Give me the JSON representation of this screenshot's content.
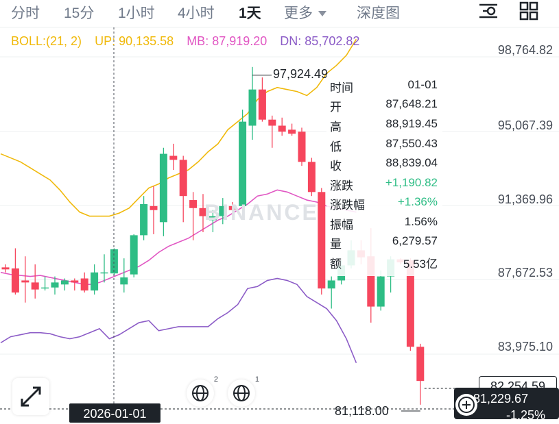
{
  "tabs": [
    {
      "label": "分时"
    },
    {
      "label": "15分"
    },
    {
      "label": "1小时"
    },
    {
      "label": "4小时"
    },
    {
      "label": "1天"
    },
    {
      "label": "更多"
    },
    {
      "label": "深度图"
    }
  ],
  "active_tab": "1天",
  "icons": {
    "settings": "settings-sliders-icon",
    "grid": "grid-layout-icon",
    "expand": "expand-diagonal-icon",
    "globe": "globe-icon",
    "add": "add-circle-icon"
  },
  "indicator": {
    "name": "BOLL:(21, 2)",
    "up": "UP: 90,135.58",
    "mb": "MB: 87,919.20",
    "dn": "DN: 85,702.82"
  },
  "colors": {
    "up": "#2ebd85",
    "down": "#f6465d",
    "boll_up": "#f0b90b",
    "boll_mb": "#e157c3",
    "boll_dn": "#8c5cc7"
  },
  "y_axis": [
    "98,764.82",
    "95,067.39",
    "91,369.96",
    "87,672.53",
    "83,975.10"
  ],
  "tooltip": [
    {
      "k": "时间",
      "v": "01-01"
    },
    {
      "k": "开",
      "v": "87,648.21"
    },
    {
      "k": "高",
      "v": "88,919.45"
    },
    {
      "k": "低",
      "v": "87,550.43"
    },
    {
      "k": "收",
      "v": "88,839.04"
    },
    {
      "k": "涨跌",
      "v": "+1,190.82",
      "up": true
    },
    {
      "k": "涨跌幅",
      "v": "+1.36%",
      "up": true
    },
    {
      "k": "振幅",
      "v": "1.56%"
    },
    {
      "k": "量",
      "v": "6,279.57"
    },
    {
      "k": "额",
      "v": "5.53亿"
    }
  ],
  "crosshair_date": "2026-01-01",
  "peak_label": "97,924.49",
  "low_label": "81,118.00",
  "price_box": "82,254.59",
  "last_price": "81,229.67",
  "last_change": "-1.25%",
  "watermark": "BINANCE",
  "badges": {
    "first": "2",
    "second": "1"
  },
  "chart_data": {
    "type": "candlestick",
    "y_axis_ticks": [
      98764.82,
      95067.39,
      91369.96,
      87672.53,
      83975.1
    ],
    "candles": [
      {
        "o": 87950,
        "h": 88100,
        "l": 87700,
        "c": 87850
      },
      {
        "o": 87900,
        "h": 88900,
        "l": 86600,
        "c": 86700
      },
      {
        "o": 87300,
        "h": 88500,
        "l": 86200,
        "c": 87200
      },
      {
        "o": 87200,
        "h": 88100,
        "l": 86400,
        "c": 86850
      },
      {
        "o": 86900,
        "h": 87500,
        "l": 86800,
        "c": 86950
      },
      {
        "o": 86950,
        "h": 87500,
        "l": 86600,
        "c": 87200
      },
      {
        "o": 87100,
        "h": 87400,
        "l": 86800,
        "c": 87300
      },
      {
        "o": 87300,
        "h": 87400,
        "l": 86800,
        "c": 87200
      },
      {
        "o": 87400,
        "h": 87700,
        "l": 86700,
        "c": 86800
      },
      {
        "o": 86800,
        "h": 88100,
        "l": 86600,
        "c": 87700
      },
      {
        "o": 87650,
        "h": 88600,
        "l": 87200,
        "c": 87700
      },
      {
        "o": 87650,
        "h": 88900,
        "l": 87550,
        "c": 88850
      },
      {
        "o": 87100,
        "h": 88400,
        "l": 86700,
        "c": 87450
      },
      {
        "o": 87600,
        "h": 89600,
        "l": 87450,
        "c": 89550
      },
      {
        "o": 89550,
        "h": 91500,
        "l": 89300,
        "c": 91100
      },
      {
        "o": 91000,
        "h": 92000,
        "l": 89600,
        "c": 90800
      },
      {
        "o": 90200,
        "h": 93900,
        "l": 89500,
        "c": 93600
      },
      {
        "o": 93500,
        "h": 94100,
        "l": 92800,
        "c": 93300
      },
      {
        "o": 93300,
        "h": 93500,
        "l": 90200,
        "c": 91500
      },
      {
        "o": 91300,
        "h": 91700,
        "l": 89300,
        "c": 90900
      },
      {
        "o": 90900,
        "h": 91600,
        "l": 89700,
        "c": 90500
      },
      {
        "o": 90300,
        "h": 90800,
        "l": 89700,
        "c": 90500
      },
      {
        "o": 90500,
        "h": 91400,
        "l": 90100,
        "c": 91000
      },
      {
        "o": 91000,
        "h": 91200,
        "l": 90400,
        "c": 90800
      },
      {
        "o": 91000,
        "h": 95800,
        "l": 90900,
        "c": 95200
      },
      {
        "o": 95000,
        "h": 97920,
        "l": 94300,
        "c": 96800
      },
      {
        "o": 96800,
        "h": 97400,
        "l": 95200,
        "c": 95300
      },
      {
        "o": 95300,
        "h": 95500,
        "l": 93900,
        "c": 95000
      },
      {
        "o": 95000,
        "h": 95400,
        "l": 94500,
        "c": 94700
      },
      {
        "o": 94800,
        "h": 95100,
        "l": 94500,
        "c": 94600
      },
      {
        "o": 94700,
        "h": 94900,
        "l": 93000,
        "c": 93200
      },
      {
        "o": 93200,
        "h": 93400,
        "l": 91500,
        "c": 91700
      },
      {
        "o": 91700,
        "h": 91900,
        "l": 86600,
        "c": 86900
      },
      {
        "o": 86900,
        "h": 87500,
        "l": 85900,
        "c": 87300
      },
      {
        "o": 87300,
        "h": 88300,
        "l": 87100,
        "c": 88050
      },
      {
        "o": 88050,
        "h": 89300,
        "l": 87900,
        "c": 88800
      },
      {
        "o": 88800,
        "h": 89300,
        "l": 88100,
        "c": 88450
      },
      {
        "o": 88500,
        "h": 89900,
        "l": 85200,
        "c": 86000
      },
      {
        "o": 86000,
        "h": 87800,
        "l": 85800,
        "c": 87500
      },
      {
        "o": 87500,
        "h": 88500,
        "l": 86700,
        "c": 88350
      },
      {
        "o": 88350,
        "h": 88400,
        "l": 88100,
        "c": 88200
      },
      {
        "o": 88300,
        "h": 88400,
        "l": 83800,
        "c": 84000
      },
      {
        "o": 84000,
        "h": 84150,
        "l": 81118,
        "c": 82300
      }
    ],
    "boll": {
      "up": [
        93600,
        93400,
        93200,
        92900,
        92600,
        92300,
        91800,
        91200,
        90700,
        90500,
        90500,
        90500,
        90650,
        90900,
        91400,
        91900,
        92100,
        92400,
        92600,
        92800,
        93200,
        93700,
        94100,
        94800,
        95200,
        95600,
        96300,
        96700,
        96900,
        96800,
        96700,
        96500,
        96900,
        97600,
        98000,
        98500,
        99300
      ],
      "mb": [
        87700,
        87600,
        87550,
        87500,
        87550,
        87450,
        87350,
        87250,
        87150,
        87100,
        87200,
        87400,
        87600,
        87800,
        88000,
        88300,
        88700,
        89000,
        89200,
        89400,
        89700,
        90000,
        90300,
        90500,
        90800,
        91100,
        91500,
        91600,
        91800,
        91700,
        91500,
        91300,
        91200,
        91000,
        90900,
        90800,
        90700
      ],
      "dn": [
        84200,
        84500,
        84600,
        84700,
        84700,
        84650,
        84500,
        84400,
        84500,
        84700,
        84900,
        84400,
        84600,
        84900,
        85200,
        85300,
        84800,
        84900,
        85000,
        85000,
        85000,
        85000,
        85400,
        85700,
        86100,
        86900,
        87000,
        87300,
        87400,
        87300,
        87100,
        86500,
        86200,
        85900,
        85300,
        84400,
        83200
      ]
    }
  }
}
